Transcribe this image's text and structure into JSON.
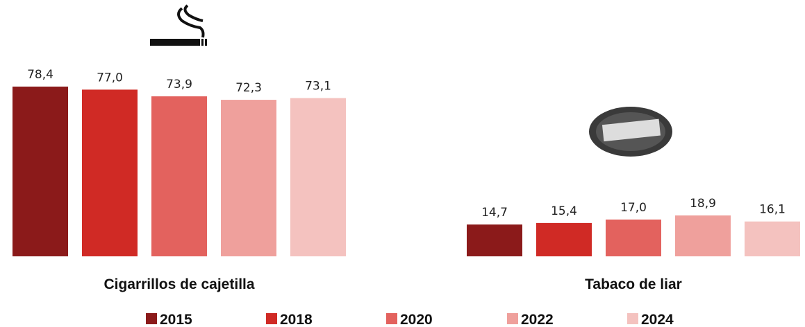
{
  "chart_data": {
    "type": "bar",
    "categories": [
      "Cigarrillos de cajetilla",
      "Tabaco de liar"
    ],
    "series": [
      {
        "name": "2015",
        "color": "#8b1a1a",
        "values": [
          78.4,
          14.7
        ],
        "value_labels": [
          "78,4",
          "14,7"
        ]
      },
      {
        "name": "2018",
        "color": "#d02a25",
        "values": [
          77.0,
          15.4
        ],
        "value_labels": [
          "77,0",
          "15,4"
        ]
      },
      {
        "name": "2020",
        "color": "#e3625e",
        "values": [
          73.9,
          17.0
        ],
        "value_labels": [
          "73,9",
          "17,0"
        ]
      },
      {
        "name": "2022",
        "color": "#efa09c",
        "values": [
          72.3,
          18.9
        ],
        "value_labels": [
          "72,3",
          "18,9"
        ]
      },
      {
        "name": "2024",
        "color": "#f4c2bf",
        "values": [
          73.1,
          16.1
        ],
        "value_labels": [
          "73,1",
          "16,1"
        ]
      }
    ],
    "legend": "bottom"
  }
}
